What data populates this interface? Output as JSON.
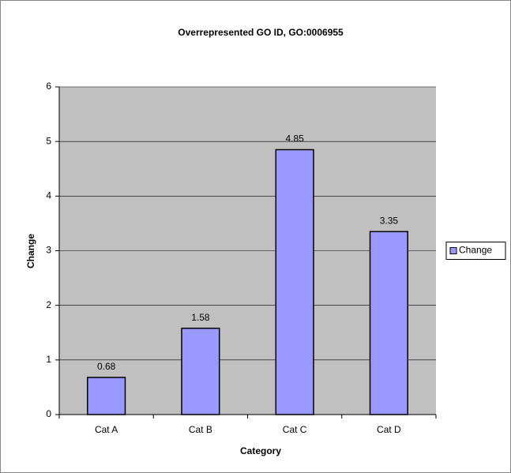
{
  "chart_data": {
    "type": "bar",
    "title": "Overrepresented GO ID, GO:0006955",
    "x_label": "Category",
    "y_label": "Change",
    "categories": [
      "Cat A",
      "Cat B",
      "Cat C",
      "Cat D"
    ],
    "series": [
      {
        "name": "Change",
        "color": "#9999ff",
        "values": [
          0.68,
          1.58,
          4.85,
          3.35
        ]
      }
    ],
    "ylim": [
      0,
      6
    ],
    "yticks": [
      0,
      1,
      2,
      3,
      4,
      5,
      6
    ],
    "grid": true,
    "legend": "right"
  }
}
